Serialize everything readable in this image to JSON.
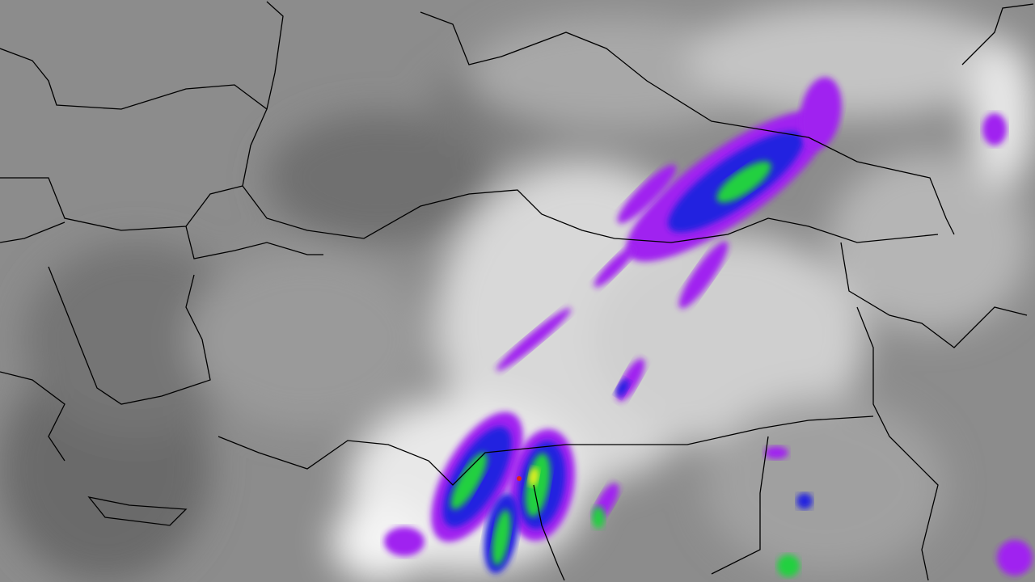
{
  "image": {
    "kind": "infrared satellite imagery with country borders",
    "colors": {
      "clear_ground": "#6e6e6e",
      "sea": "#5a5a5a",
      "cloud_low": "#b8b8b8",
      "cloud_high": "#f2f2f2",
      "convection_purple": "#a020f0",
      "convection_blue": "#2020e0",
      "convection_green": "#20d040",
      "convection_yellow": "#e8f020",
      "convection_red": "#e02020",
      "borders": "#000000"
    }
  }
}
